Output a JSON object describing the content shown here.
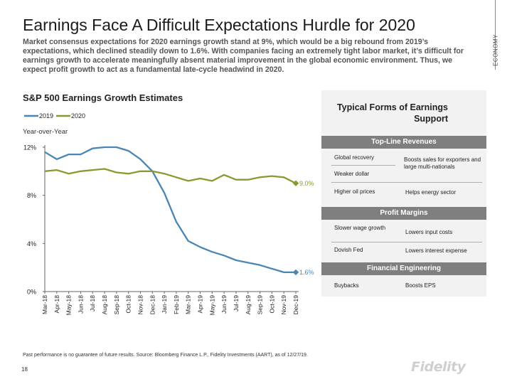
{
  "header": {
    "title": "Earnings Face A Difficult Expectations Hurdle for 2020",
    "section_label": "ECONOMY",
    "subtitle": "Market consensus expectations for 2020 earnings growth stand at 9%, which would be a big rebound from 2019’s expectations, which declined steadily down to 1.6%. With companies facing an extremely tight labor market, it’s difficult for earnings growth to accelerate meaningfully absent material improvement in the global economic environment. Thus, we expect profit growth to act as a fundamental late-cycle headwind in 2020."
  },
  "chart_data": {
    "type": "line",
    "title": "S&P 500 Earnings Growth Estimates",
    "ylabel": "Year-over-Year",
    "ylim": [
      0,
      12
    ],
    "yticks": [
      0,
      4,
      8,
      12
    ],
    "ytick_labels": [
      "0%",
      "4%",
      "8%",
      "12%"
    ],
    "categories": [
      "Mar-18",
      "Apr-18",
      "May-18",
      "Jun-18",
      "Jul-18",
      "Aug-18",
      "Sep-18",
      "Oct-18",
      "Nov-18",
      "Dec-18",
      "Jan-19",
      "Feb-19",
      "Mar-19",
      "Apr-19",
      "May-19",
      "Jun-19",
      "Jul-19",
      "Aug-19",
      "Sep-19",
      "Oct-19",
      "Nov-19",
      "Dec-19"
    ],
    "series": [
      {
        "name": "2019",
        "color": "#4a86b4",
        "values": [
          11.6,
          11.0,
          11.4,
          11.4,
          11.9,
          12.0,
          12.0,
          11.7,
          11.0,
          10.0,
          8.2,
          5.8,
          4.2,
          3.7,
          3.3,
          3.0,
          2.6,
          2.4,
          2.2,
          1.9,
          1.6,
          1.6
        ],
        "end_label": "1.6%"
      },
      {
        "name": "2020",
        "color": "#8a9a2e",
        "values": [
          10.0,
          10.1,
          9.8,
          10.0,
          10.1,
          10.2,
          9.9,
          9.8,
          10.0,
          10.0,
          9.8,
          9.5,
          9.2,
          9.4,
          9.2,
          9.7,
          9.3,
          9.3,
          9.5,
          9.6,
          9.5,
          9.0
        ],
        "end_label": "9.0%"
      }
    ]
  },
  "panel": {
    "title": "Typical Forms of Earnings Support",
    "sections": [
      {
        "header": "Top-Line Revenues",
        "rows": [
          {
            "left": "Global recovery",
            "right": "Boosts sales for exporters and large multi-nationals"
          },
          {
            "left": "Weaker dollar",
            "right": ""
          },
          {
            "left": "Higher oil prices",
            "right": "Helps energy sector"
          }
        ]
      },
      {
        "header": "Profit Margins",
        "rows": [
          {
            "left": "Slower wage growth",
            "right": "Lowers input costs"
          },
          {
            "left": "Dovish Fed",
            "right": "Lowers interest expense"
          }
        ]
      },
      {
        "header": "Financial Engineering",
        "rows": [
          {
            "left": "Buybacks",
            "right": "Boosts EPS"
          }
        ]
      }
    ]
  },
  "footer": {
    "footnote": "Past performance is no guarantee of future results. Source: Bloomberg Finance L.P., Fidelity Investments (AART), as of 12/27/19.",
    "page_number": "18",
    "logo_text": "Fidelity"
  }
}
